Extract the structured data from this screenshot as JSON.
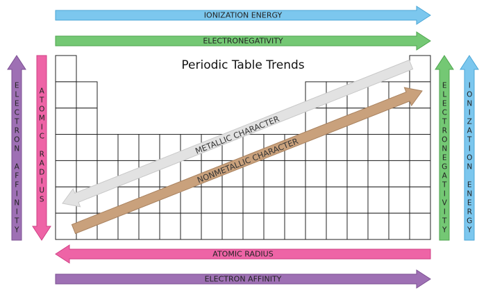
{
  "title": "Periodic Table Trends",
  "top_arrows": [
    "IONIZATION ENERGY",
    "ELECTRONEGATIVITY"
  ],
  "bottom_arrows": [
    "ATOMIC RADIUS",
    "ELECTRON AFFINITY"
  ],
  "left_arrows": [
    "ELECTRON AFFINITY",
    "ATOMIC RADIUS"
  ],
  "right_arrows": [
    "ELECTRONEGATIVITY",
    "IONIZATION ENERGY"
  ],
  "diagonal_arrows": [
    "METALLIC CHARACTER",
    "NONMETALLIC CHARACTER"
  ]
}
